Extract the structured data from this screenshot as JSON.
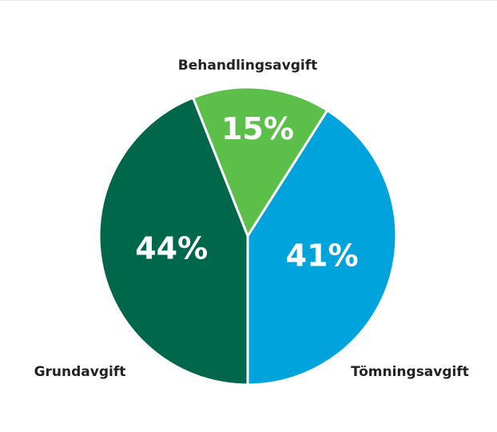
{
  "chart_data": {
    "type": "pie",
    "categories": [
      "Behandlingsavgift",
      "Tömningsavgift",
      "Grundavgift"
    ],
    "values": [
      15,
      41,
      44
    ],
    "value_labels": [
      "15%",
      "41%",
      "44%"
    ],
    "colors": [
      "#5bbf4a",
      "#00a3dc",
      "#00674a"
    ]
  }
}
